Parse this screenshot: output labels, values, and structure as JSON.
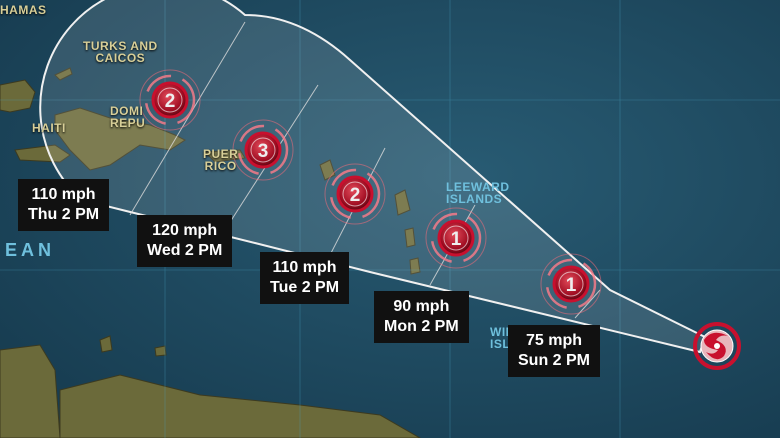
{
  "map_labels": {
    "bahamas": "HAMAS",
    "turks_caicos": [
      "TURKS AND",
      "CAICOS"
    ],
    "haiti": "HAITI",
    "dominican_republic": [
      "DOMI",
      "REPU"
    ],
    "puerto_rico": [
      "PUER",
      "RICO"
    ],
    "leeward_islands": [
      "LEEWARD",
      "ISLANDS"
    ],
    "windward_islands": [
      "WIN",
      "ISL"
    ],
    "ocean": "EAN"
  },
  "forecast_points": [
    {
      "wind": "110 mph",
      "time": "Thu 2 PM",
      "category": "2"
    },
    {
      "wind": "120 mph",
      "time": "Wed 2 PM",
      "category": "3"
    },
    {
      "wind": "110 mph",
      "time": "Tue 2 PM",
      "category": "2"
    },
    {
      "wind": "90 mph",
      "time": "Mon 2 PM",
      "category": "1"
    },
    {
      "wind": "75 mph",
      "time": "Sun 2 PM",
      "category": "1"
    }
  ],
  "colors": {
    "storm": "#c8102e",
    "ocean": "#1d4a60",
    "land": "#6b6a3a",
    "cone": "#ffffff",
    "label_bg": "#111111"
  }
}
